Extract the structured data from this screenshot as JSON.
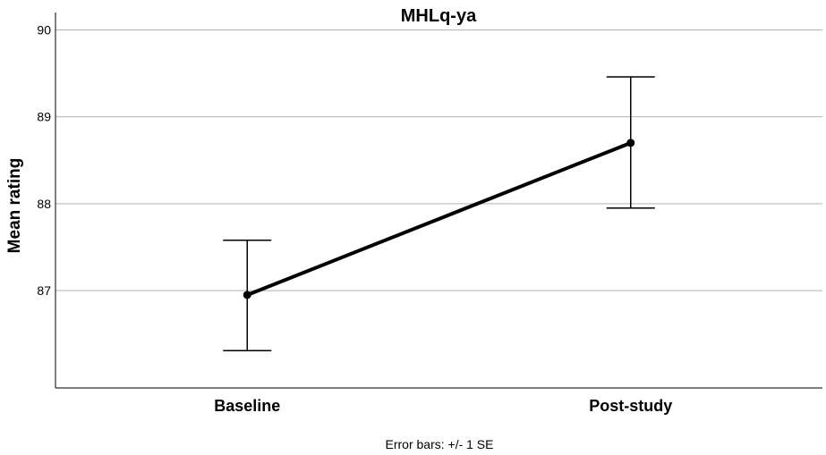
{
  "chart_data": {
    "type": "line",
    "title": "MHLq-ya",
    "xlabel": "",
    "ylabel": "Mean rating",
    "categories": [
      "Baseline",
      "Post-study"
    ],
    "series": [
      {
        "values": [
          86.95,
          88.7
        ],
        "error_low": [
          86.31,
          87.95
        ],
        "error_high": [
          87.58,
          89.46
        ]
      }
    ],
    "ylim": [
      85.88,
      90.2
    ],
    "yticks": [
      "87",
      "88",
      "89",
      "90"
    ],
    "grid": true,
    "line_color": "#000000",
    "grid_color": "#b3b3b3",
    "footnote": "Error bars: +/- 1 SE"
  }
}
